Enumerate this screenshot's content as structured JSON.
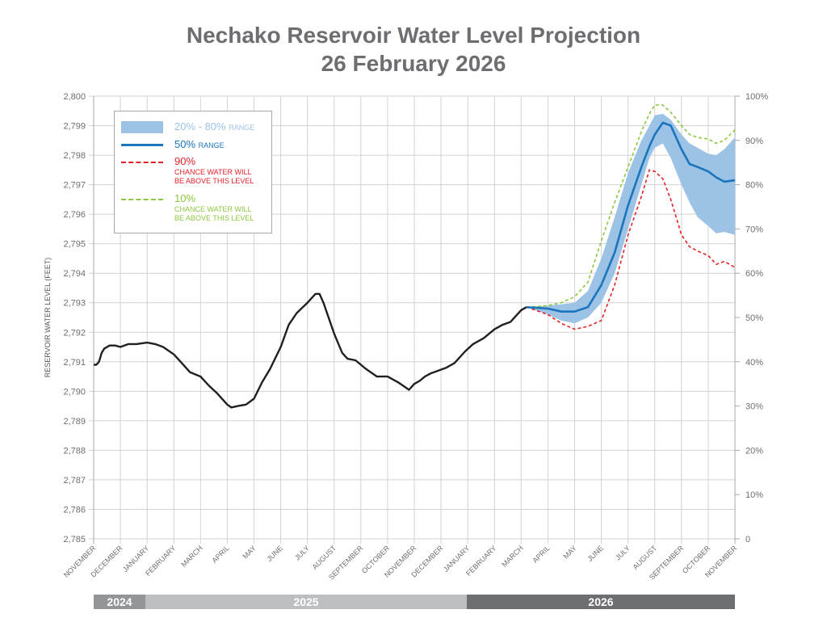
{
  "title": {
    "line1": "Nechako Reservoir Water Level Projection",
    "line2": "26 February 2026"
  },
  "legend": {
    "range_20_80": {
      "main": "20% - 80%",
      "suffix": "RANGE"
    },
    "range_50": {
      "main": "50%",
      "suffix": "RANGE"
    },
    "p90": {
      "main": "90%",
      "sub1": "CHANCE WATER WILL",
      "sub2": "BE ABOVE THIS LEVEL"
    },
    "p10": {
      "main": "10%",
      "sub1": "CHANCE WATER WILL",
      "sub2": "BE ABOVE THIS LEVEL"
    }
  },
  "years": [
    {
      "label": "2024",
      "color": "#939598"
    },
    {
      "label": "2025",
      "color": "#bcbec0"
    },
    {
      "label": "2026",
      "color": "#6d6e71"
    }
  ],
  "chart_data": {
    "type": "line",
    "title": "Nechako Reservoir Water Level Projection — 26 February 2026",
    "ylabel": "RESERVOIR WATER LEVEL (FEET)",
    "ylim": [
      2785,
      2800
    ],
    "y_ticks": [
      "2,785",
      "2,786",
      "2,787",
      "2,788",
      "2,789",
      "2,790",
      "2,791",
      "2,792",
      "2,793",
      "2,794",
      "2,795",
      "2,796",
      "2,797",
      "2,798",
      "2,799",
      "2,800"
    ],
    "y2_ticks": [
      "0",
      "10%",
      "20%",
      "30%",
      "40%",
      "50%",
      "60%",
      "70%",
      "80%",
      "90%",
      "100%"
    ],
    "x_unit": "months since November 2024",
    "xlim": [
      0,
      24
    ],
    "x_ticks": [
      "NOVEMBER",
      "DECEMBER",
      "JANUARY",
      "FEBRUARY",
      "MARCH",
      "APRIL",
      "MAY",
      "JUNE",
      "JULY",
      "AUGUST",
      "SEPTEMBER",
      "OCTOBER",
      "NOVEMBER",
      "DECEMBER",
      "JANUARY",
      "FEBRUARY",
      "MARCH",
      "APRIL",
      "MAY",
      "JUNE",
      "JULY",
      "AUGUST",
      "SEPTEMBER",
      "OCTOBER",
      "NOVEMBER"
    ],
    "grid": true,
    "legend_position": "top-left",
    "colors": {
      "historical": "#231f20",
      "median": "#1b75bc",
      "band": "#9cc3e6",
      "p90": "#e12228",
      "p10": "#8dc63f"
    },
    "historical": {
      "x": [
        0,
        0.1,
        0.2,
        0.3,
        0.4,
        0.6,
        0.8,
        1.0,
        1.3,
        1.6,
        2.0,
        2.3,
        2.6,
        3.0,
        3.3,
        3.6,
        4.0,
        4.3,
        4.6,
        5.0,
        5.15,
        5.4,
        5.7,
        6.0,
        6.3,
        6.6,
        7.0,
        7.3,
        7.6,
        8.0,
        8.3,
        8.45,
        8.6,
        9.0,
        9.3,
        9.5,
        9.8,
        10.2,
        10.6,
        11.0,
        11.4,
        11.8,
        12.0,
        12.2,
        12.4,
        12.6,
        12.9,
        13.2,
        13.5,
        13.9,
        14.2,
        14.6,
        15.0,
        15.3,
        15.6,
        16.0,
        16.2
      ],
      "y": [
        2790.9,
        2790.9,
        2791.0,
        2791.3,
        2791.45,
        2791.55,
        2791.55,
        2791.5,
        2791.6,
        2791.6,
        2791.65,
        2791.6,
        2791.5,
        2791.25,
        2790.95,
        2790.65,
        2790.5,
        2790.2,
        2789.95,
        2789.55,
        2789.45,
        2789.5,
        2789.55,
        2789.75,
        2790.3,
        2790.75,
        2791.5,
        2792.25,
        2792.65,
        2793.0,
        2793.3,
        2793.3,
        2793.0,
        2791.95,
        2791.3,
        2791.1,
        2791.05,
        2790.75,
        2790.5,
        2790.5,
        2790.3,
        2790.05,
        2790.25,
        2790.35,
        2790.5,
        2790.6,
        2790.7,
        2790.8,
        2790.95,
        2791.35,
        2791.6,
        2791.8,
        2792.1,
        2792.25,
        2792.35,
        2792.75,
        2792.85
      ]
    },
    "projection": {
      "x": [
        16.2,
        17.0,
        17.5,
        18.0,
        18.5,
        19.0,
        19.5,
        20.0,
        20.5,
        20.8,
        21.0,
        21.3,
        21.6,
        22.0,
        22.3,
        22.6,
        23.0,
        23.3,
        23.6,
        24.0
      ],
      "p50": [
        2792.85,
        2792.8,
        2792.7,
        2792.7,
        2792.85,
        2793.6,
        2794.7,
        2796.3,
        2797.6,
        2798.3,
        2798.7,
        2799.1,
        2799.0,
        2798.2,
        2797.7,
        2797.6,
        2797.45,
        2797.25,
        2797.1,
        2797.15
      ],
      "p20": [
        2792.85,
        2792.6,
        2792.4,
        2792.3,
        2792.5,
        2793.0,
        2794.0,
        2795.5,
        2797.0,
        2797.9,
        2798.25,
        2798.4,
        2797.9,
        2797.0,
        2796.4,
        2795.9,
        2795.6,
        2795.35,
        2795.4,
        2795.3
      ],
      "p80": [
        2792.85,
        2792.9,
        2792.95,
        2793.0,
        2793.4,
        2794.5,
        2795.9,
        2797.4,
        2798.5,
        2799.0,
        2799.35,
        2799.4,
        2799.2,
        2798.7,
        2798.4,
        2798.25,
        2798.05,
        2798.0,
        2798.2,
        2798.6
      ],
      "p90": [
        2792.85,
        2792.6,
        2792.3,
        2792.1,
        2792.2,
        2792.4,
        2793.6,
        2795.3,
        2796.6,
        2797.5,
        2797.45,
        2797.2,
        2796.5,
        2795.3,
        2794.9,
        2794.75,
        2794.6,
        2794.3,
        2794.4,
        2794.2
      ],
      "p10": [
        2792.85,
        2792.9,
        2793.0,
        2793.2,
        2793.7,
        2795.1,
        2796.4,
        2797.6,
        2798.8,
        2799.4,
        2799.7,
        2799.7,
        2799.45,
        2799.0,
        2798.7,
        2798.6,
        2798.55,
        2798.4,
        2798.5,
        2798.85
      ]
    }
  }
}
